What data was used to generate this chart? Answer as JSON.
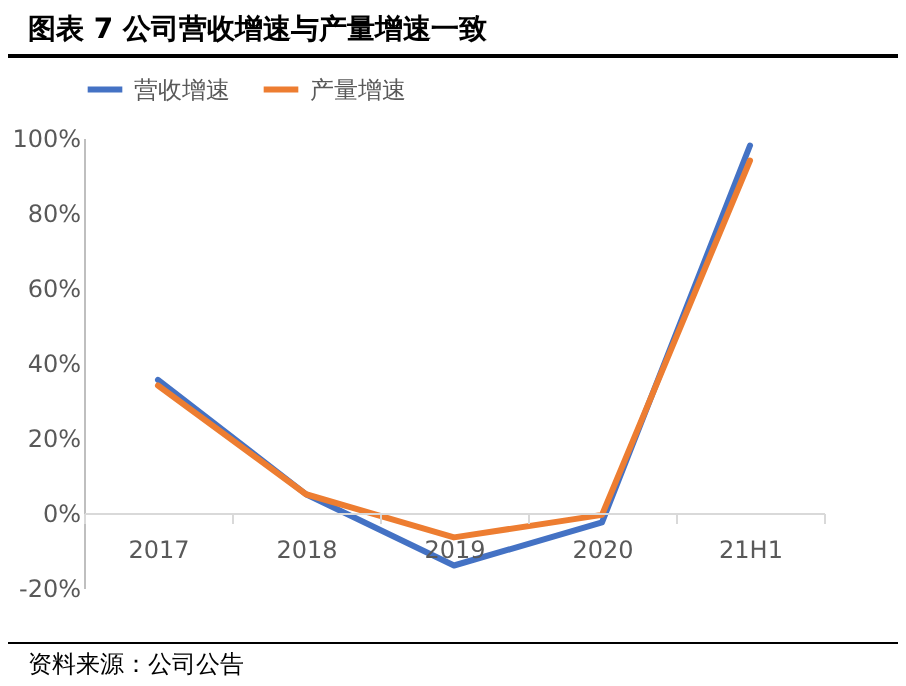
{
  "chart_data": {
    "type": "line",
    "title": "图表 7 公司营收增速与产量增速一致",
    "annotations": [
      "资料来源：公司公告"
    ],
    "categories": [
      "2017",
      "2018",
      "2019",
      "2020",
      "21H1"
    ],
    "series": [
      {
        "name": "营收增速",
        "color": "#4472c4",
        "values": [
          35.5,
          5,
          -14,
          -2.5,
          98
        ]
      },
      {
        "name": "产量增速",
        "color": "#ed7d31",
        "values": [
          34,
          5,
          -6.5,
          -0.5,
          94
        ]
      }
    ],
    "ylim": [
      -20,
      100
    ],
    "yticks": [
      {
        "value": -20,
        "label": "-20%"
      },
      {
        "value": 0,
        "label": "0%"
      },
      {
        "value": 20,
        "label": "20%"
      },
      {
        "value": 40,
        "label": "40%"
      },
      {
        "value": 60,
        "label": "60%"
      },
      {
        "value": 80,
        "label": "80%"
      },
      {
        "value": 100,
        "label": "100%"
      }
    ],
    "grid": false,
    "legend": "top",
    "marker": "none",
    "line_style": "solid"
  }
}
